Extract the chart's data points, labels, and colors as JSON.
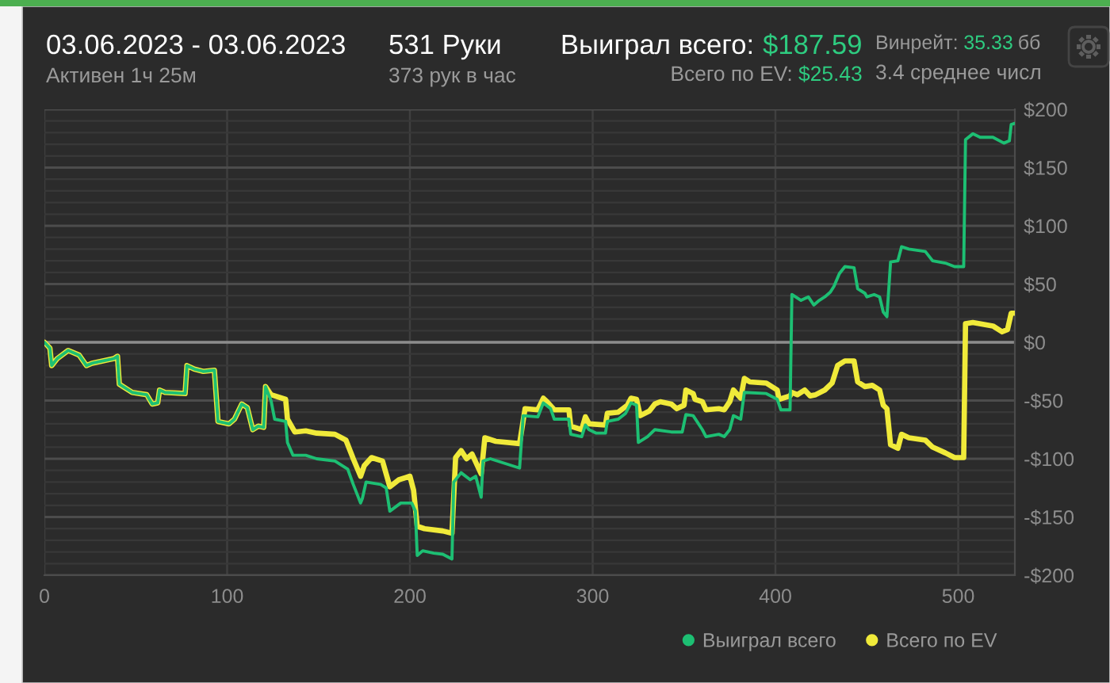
{
  "chart_data": {
    "type": "line",
    "title": "03.06.2023 - 03.06.2023",
    "subtitle": "Активен 1ч 25м",
    "annotations": [
      "531 Руки",
      "373 рук в час",
      "Выиграл всего: $187.59",
      "Всего по EV: $25.43",
      "Винрейт: 35.33 бб",
      "3.4 среднее числ"
    ],
    "series": [
      {
        "name": "Выиграл всего",
        "color": "#1dbf73",
        "x": [
          0,
          3,
          4,
          7,
          13,
          19,
          23,
          26,
          38,
          40,
          41,
          48,
          56,
          59,
          62,
          63,
          66,
          77,
          78,
          82,
          87,
          93,
          95,
          101,
          104,
          108,
          111,
          114,
          117,
          120,
          121,
          124,
          126,
          132,
          133,
          136,
          143,
          149,
          159,
          166,
          169,
          173,
          174,
          176,
          184,
          187,
          189,
          195,
          201,
          203,
          204,
          207,
          213,
          218,
          223,
          224,
          228,
          233,
          236,
          239,
          240,
          244,
          260,
          262,
          270,
          273,
          277,
          279,
          287,
          288,
          294,
          296,
          298,
          302,
          307,
          308,
          314,
          318,
          321,
          324,
          325,
          330,
          334,
          343,
          349,
          351,
          355,
          360,
          362,
          369,
          372,
          375,
          377,
          381,
          383,
          395,
          401,
          403,
          408,
          409,
          414,
          418,
          421,
          424,
          427,
          430,
          432,
          435,
          438,
          443,
          445,
          449,
          450,
          454,
          457,
          459,
          461,
          463,
          467,
          469,
          473,
          482,
          486,
          493,
          498,
          503,
          504,
          508,
          512,
          519,
          525,
          528,
          529,
          531
        ],
        "values": [
          0,
          -5,
          -20,
          -14,
          -7,
          -11,
          -20,
          -18,
          -14,
          -12,
          -36,
          -43,
          -45,
          -53,
          -52,
          -41,
          -43,
          -44,
          -20,
          -23,
          -25,
          -24,
          -68,
          -70,
          -66,
          -53,
          -56,
          -75,
          -72,
          -73,
          -38,
          -50,
          -66,
          -68,
          -86,
          -97,
          -97,
          -100,
          -102,
          -109,
          -122,
          -138,
          -134,
          -120,
          -122,
          -125,
          -145,
          -138,
          -138,
          -145,
          -183,
          -179,
          -181,
          -182,
          -186,
          -120,
          -112,
          -118,
          -115,
          -133,
          -102,
          -100,
          -108,
          -63,
          -64,
          -52,
          -57,
          -66,
          -66,
          -79,
          -81,
          -71,
          -75,
          -78,
          -78,
          -68,
          -66,
          -61,
          -52,
          -54,
          -86,
          -81,
          -75,
          -77,
          -77,
          -62,
          -63,
          -75,
          -81,
          -79,
          -81,
          -75,
          -63,
          -66,
          -43,
          -44,
          -49,
          -58,
          -58,
          41,
          36,
          39,
          32,
          36,
          39,
          43,
          48,
          59,
          65,
          64,
          46,
          42,
          39,
          41,
          39,
          26,
          22,
          69,
          70,
          82,
          80,
          78,
          70,
          68,
          65,
          65,
          174,
          179,
          176,
          176,
          171,
          173,
          187,
          188
        ]
      },
      {
        "name": "Всего по EV",
        "color": "#f0ea3a",
        "x": [
          0,
          3,
          4,
          7,
          13,
          19,
          23,
          26,
          38,
          40,
          41,
          48,
          56,
          59,
          62,
          63,
          66,
          77,
          78,
          82,
          87,
          93,
          95,
          101,
          104,
          108,
          111,
          114,
          117,
          120,
          121,
          124,
          132,
          133,
          137,
          143,
          149,
          159,
          165,
          169,
          173,
          175,
          179,
          185,
          189,
          194,
          200,
          202,
          204,
          208,
          218,
          223,
          225,
          228,
          231,
          234,
          239,
          241,
          247,
          260,
          263,
          270,
          273,
          275,
          279,
          287,
          288,
          294,
          296,
          298,
          307,
          308,
          314,
          319,
          321,
          324,
          326,
          331,
          334,
          337,
          343,
          346,
          350,
          351,
          355,
          356,
          360,
          362,
          369,
          372,
          375,
          377,
          381,
          383,
          386,
          395,
          401,
          402,
          408,
          409,
          412,
          416,
          419,
          422,
          427,
          431,
          434,
          438,
          443,
          445,
          449,
          453,
          457,
          459,
          461,
          463,
          467,
          469,
          473,
          482,
          486,
          493,
          498,
          503,
          504,
          508,
          519,
          524,
          527,
          529,
          531
        ],
        "values": [
          0,
          -5,
          -20,
          -14,
          -7,
          -11,
          -20,
          -18,
          -14,
          -12,
          -36,
          -43,
          -45,
          -53,
          -52,
          -41,
          -43,
          -44,
          -20,
          -23,
          -25,
          -24,
          -68,
          -70,
          -66,
          -53,
          -56,
          -75,
          -72,
          -73,
          -38,
          -45,
          -49,
          -66,
          -77,
          -76,
          -78,
          -79,
          -84,
          -100,
          -115,
          -106,
          -99,
          -102,
          -124,
          -118,
          -115,
          -127,
          -158,
          -160,
          -162,
          -164,
          -99,
          -93,
          -100,
          -96,
          -113,
          -82,
          -85,
          -87,
          -57,
          -58,
          -48,
          -51,
          -58,
          -58,
          -72,
          -75,
          -64,
          -70,
          -71,
          -61,
          -60,
          -54,
          -48,
          -49,
          -63,
          -59,
          -53,
          -51,
          -53,
          -57,
          -54,
          -41,
          -44,
          -49,
          -51,
          -58,
          -57,
          -58,
          -51,
          -41,
          -48,
          -31,
          -34,
          -35,
          -41,
          -49,
          -46,
          -43,
          -45,
          -41,
          -46,
          -45,
          -41,
          -35,
          -20,
          -16,
          -16,
          -34,
          -38,
          -37,
          -41,
          -54,
          -57,
          -88,
          -91,
          -79,
          -82,
          -84,
          -90,
          -95,
          -99,
          -99,
          16,
          17,
          14,
          9,
          11,
          25,
          25
        ]
      }
    ],
    "xlim": [
      0,
      531
    ],
    "xticks": [
      0,
      100,
      200,
      300,
      400,
      500
    ],
    "ylim": [
      -200,
      200
    ],
    "yticks": [
      {
        "value": 200,
        "label": "$200"
      },
      {
        "value": 190,
        "label": null
      },
      {
        "value": 180,
        "label": null
      },
      {
        "value": 170,
        "label": null
      },
      {
        "value": 160,
        "label": null
      },
      {
        "value": 150,
        "label": "$150"
      },
      {
        "value": 140,
        "label": null
      },
      {
        "value": 130,
        "label": null
      },
      {
        "value": 120,
        "label": null
      },
      {
        "value": 110,
        "label": null
      },
      {
        "value": 100,
        "label": "$100"
      },
      {
        "value": 90,
        "label": null
      },
      {
        "value": 80,
        "label": null
      },
      {
        "value": 70,
        "label": null
      },
      {
        "value": 60,
        "label": null
      },
      {
        "value": 50,
        "label": "$50"
      },
      {
        "value": 40,
        "label": null
      },
      {
        "value": 30,
        "label": null
      },
      {
        "value": 20,
        "label": null
      },
      {
        "value": 10,
        "label": null
      },
      {
        "value": 0,
        "label": "$0"
      },
      {
        "value": -10,
        "label": null
      },
      {
        "value": -20,
        "label": null
      },
      {
        "value": -30,
        "label": null
      },
      {
        "value": -40,
        "label": null
      },
      {
        "value": -50,
        "label": "-$50"
      },
      {
        "value": -60,
        "label": null
      },
      {
        "value": -70,
        "label": null
      },
      {
        "value": -80,
        "label": null
      },
      {
        "value": -90,
        "label": null
      },
      {
        "value": -100,
        "label": "-$100"
      },
      {
        "value": -110,
        "label": null
      },
      {
        "value": -120,
        "label": null
      },
      {
        "value": -130,
        "label": null
      },
      {
        "value": -140,
        "label": null
      },
      {
        "value": -150,
        "label": "-$150"
      },
      {
        "value": -160,
        "label": null
      },
      {
        "value": -170,
        "label": null
      },
      {
        "value": -180,
        "label": null
      },
      {
        "value": -190,
        "label": null
      },
      {
        "value": -200,
        "label": "-$200"
      }
    ],
    "grid": true,
    "legend": "bottom right",
    "ref_lines": [
      {
        "axis": "y",
        "value": 0,
        "color": "#8c8c8c"
      }
    ]
  }
}
